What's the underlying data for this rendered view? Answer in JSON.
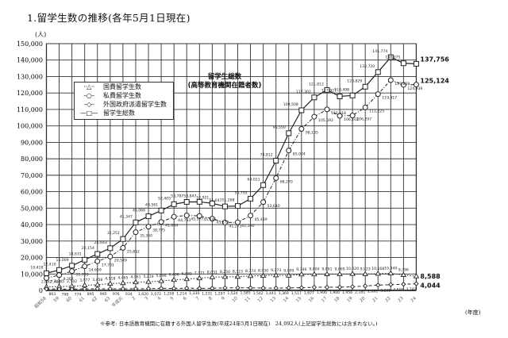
{
  "page": {
    "title": "1.留学生数の推移(各年5月1日現在)",
    "y_unit": "(人)",
    "x_unit": "(年度)",
    "note": "※参考: 日本語教育機関に在籍する外国人留学生数(平成24年5月1日現在)　24,092人(上記留学生総数には含まれない。)"
  },
  "legend": {
    "items": [
      {
        "symbol": "··△··",
        "label": "国費留学生数"
      },
      {
        "symbol": "–○–",
        "label": "私費留学生数"
      },
      {
        "symbol": "–◇–",
        "label": "外国政府派遣留学生数"
      },
      {
        "symbol": "—□—",
        "label": "留学生総数"
      }
    ]
  },
  "chart_title": {
    "line1": "留学生総数",
    "line2": "(高等教育機関在籍者数)"
  },
  "end_labels": {
    "total": "137,756",
    "private": "125,124",
    "govt": "8,588",
    "foreign_govt": "4,044"
  },
  "chart_data": {
    "type": "line",
    "title": "留学生数の推移(各年5月1日現在)",
    "xlabel": "(年度)",
    "ylabel": "(人)",
    "ylim": [
      0,
      150000
    ],
    "yticks": [
      0,
      10000,
      20000,
      30000,
      40000,
      50000,
      60000,
      70000,
      80000,
      90000,
      100000,
      110000,
      120000,
      130000,
      140000,
      150000
    ],
    "ytick_labels": [
      "0",
      "10,000",
      "20,000",
      "30,000",
      "40,000",
      "50,000",
      "60,000",
      "70,000",
      "80,000",
      "90,000",
      "100,000",
      "110,000",
      "120,000",
      "130,000",
      "140,000",
      "150,000"
    ],
    "grid": true,
    "legend_position": "upper-left",
    "categories": [
      "昭和58",
      "59",
      "60",
      "61",
      "62",
      "63",
      "平成元",
      "2",
      "3",
      "4",
      "5",
      "6",
      "7",
      "8",
      "9",
      "10",
      "11",
      "12",
      "13",
      "14",
      "15",
      "16",
      "17",
      "18",
      "19",
      "20",
      "21",
      "22",
      "23",
      "24"
    ],
    "series": [
      {
        "name": "留学生総数",
        "marker": "square",
        "style": "solid",
        "values": [
          10428,
          12410,
          15009,
          18631,
          22154,
          25643,
          31251,
          41347,
          45066,
          48561,
          52405,
          53787,
          53847,
          52921,
          51047,
          51298,
          55755,
          64011,
          78812,
          95550,
          109508,
          117302,
          121812,
          117927,
          118498,
          123829,
          132720,
          141774,
          138075,
          137756
        ]
      },
      {
        "name": "私費留学生数",
        "marker": "circle",
        "style": "dash-dot",
        "values": [
          7483,
          9267,
          11733,
          14659,
          17701,
          20549,
          25852,
          35360,
          38775,
          41604,
          44783,
          45577,
          45245,
          43573,
          41273,
          41390,
          45439,
          53640,
          68270,
          85024,
          98135,
          105592,
          110018,
          106102,
          106297,
          111225,
          119317,
          127829,
          124939,
          125124
        ]
      },
      {
        "name": "国費留学生数",
        "marker": "triangle",
        "style": "dotted",
        "values": [
          2082,
          2345,
          2502,
          3077,
          3458,
          4118,
          4465,
          4961,
          5219,
          5699,
          6408,
          6880,
          7371,
          8051,
          8250,
          8323,
          8774,
          8930,
          9173,
          9009,
          9746,
          9804,
          9891,
          9869,
          10020,
          9923,
          10168,
          10349,
          9396,
          8588
        ]
      },
      {
        "name": "外国政府派遣留学生数",
        "marker": "diamond",
        "style": "dashed",
        "values": [
          863,
          798,
          774,
          895,
          995,
          976,
          934,
          1020,
          1072,
          1258,
          1214,
          1330,
          1231,
          1297,
          1524,
          1585,
          1542,
          1441,
          1369,
          1517,
          1627,
          1906,
          1900,
          1956,
          2181,
          2681,
          3235,
          3505,
          3740,
          4044
        ]
      }
    ],
    "annotations": {
      "total_labels": [
        "10,428",
        "12,410",
        "15,009",
        "18,631",
        "22,154",
        "25,643",
        "31,251",
        "41,347",
        "45,066",
        "48,561",
        "52,405",
        "53,787",
        "53,847",
        "52,921",
        "51,047",
        "51,298",
        "55,755",
        "64,011",
        "78,812",
        "95,550",
        "109,508",
        "117,302",
        "121,812",
        "117,927",
        "118,498",
        "123,829",
        "132,720",
        "141,774",
        "138,075",
        "137,756"
      ],
      "private_labels": [
        "7,483",
        "9,267",
        "11,733",
        "14,659",
        "17,701",
        "20,549",
        "25,852",
        "35,360",
        "38,775",
        "41,604",
        "44,783",
        "45,577",
        "45,245",
        "43,573",
        "41,273",
        "41,390",
        "45,439",
        "53,640",
        "68,270",
        "85,024",
        "98,135",
        "105,592",
        "110,018",
        "106,102",
        "106,297",
        "111,225",
        "119,317",
        "127,829",
        "124,939",
        "125,124"
      ],
      "govt_labels": [
        "2,082",
        "2,345",
        "2,502",
        "3,077",
        "3,458",
        "4,118",
        "4,465",
        "4,961",
        "5,219",
        "5,699",
        "6,408",
        "6,880",
        "7,371",
        "8,051",
        "8,250",
        "8,323",
        "8,774",
        "8,930",
        "9,173",
        "9,009",
        "9,746",
        "9,804",
        "9,891",
        "9,869",
        "10,020",
        "9,923",
        "10,168",
        "10,349",
        "9,396",
        "8,588"
      ],
      "foreign_govt_labels": [
        "863",
        "798",
        "774",
        "895",
        "995",
        "976",
        "934",
        "1,020",
        "1,072",
        "1,258",
        "1,214",
        "1,330",
        "1,231",
        "1,297",
        "1,524",
        "1,585",
        "1,542",
        "1,441",
        "1,369",
        "1,517",
        "1,627",
        "1,906",
        "1,900",
        "1,956",
        "2,181",
        "2,681",
        "3,235",
        "3,505",
        "3,740",
        "4,044"
      ]
    }
  }
}
